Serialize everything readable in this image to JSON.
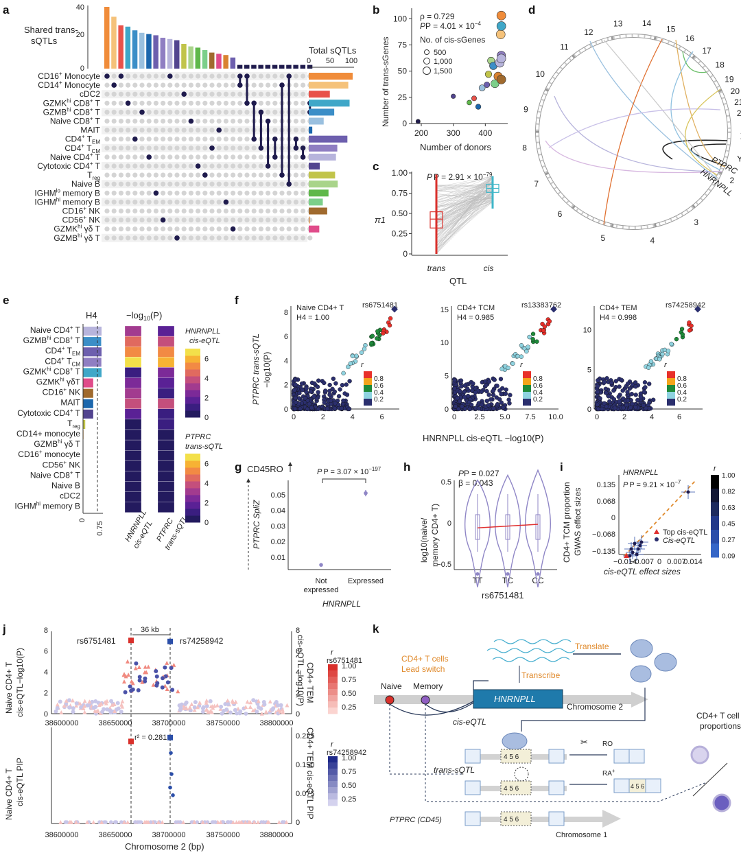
{
  "panels": [
    "a",
    "b",
    "c",
    "d",
    "e",
    "f",
    "g",
    "h",
    "i",
    "j",
    "k"
  ],
  "colors": {
    "navy": "#1f1b4d",
    "orange": "#e08a2c",
    "red": "#d9302b",
    "teal": "#3fb6c8",
    "purple": "#8f86c6",
    "blue_bar": "#2e78c0",
    "hnrnpll_box": "#1f7aab"
  },
  "panel_a": {
    "title_shared": [
      "Shared trans-",
      "sQTLs"
    ],
    "title_total": "Total sQTLs",
    "y_ticks": [
      "0",
      "20",
      "40"
    ],
    "x_ticks": [
      "0",
      "50",
      "100"
    ],
    "cell_types": [
      "CD16+ Monocyte",
      "CD14+ Monocyte",
      "cDC2",
      "GZMKhi CD8+ T",
      "GZMBhi CD8+ T",
      "Naive CD8+ T",
      "MAIT",
      "CD4+ TEM",
      "CD4+ TCM",
      "Naive CD4+ T",
      "Cytotoxic CD4+ T",
      "Treg",
      "Naive B",
      "IGHMlo memory B",
      "IGHMhi memory B",
      "CD16+ NK",
      "CD56+ NK",
      "GZMKhi γδ T",
      "GZMBhi γδ T"
    ],
    "label_parts": [
      [
        "CD16",
        "+",
        " Monocyte",
        ""
      ],
      [
        "CD14",
        "+",
        " Monocyte",
        ""
      ],
      [
        "cDC2",
        "",
        "",
        ""
      ],
      [
        "GZMK",
        "hi",
        " CD8",
        "+ T"
      ],
      [
        "GZMB",
        "hi",
        " CD8",
        "+ T"
      ],
      [
        "Naive CD8",
        "+",
        " T",
        ""
      ],
      [
        "MAIT",
        "",
        "",
        ""
      ],
      [
        "CD4",
        "+",
        " T",
        "EM"
      ],
      [
        "CD4",
        "+",
        " T",
        "CM"
      ],
      [
        "Naive CD4",
        "+",
        " T",
        ""
      ],
      [
        "Cytotoxic CD4",
        "+",
        " T",
        ""
      ],
      [
        "T",
        "reg",
        "",
        ""
      ],
      [
        "Naive B",
        "",
        "",
        ""
      ],
      [
        "IGHM",
        "lo",
        " memory B",
        ""
      ],
      [
        "IGHM",
        "hi",
        " memory B",
        ""
      ],
      [
        "CD16",
        "+",
        " NK",
        ""
      ],
      [
        "CD56",
        "+",
        " NK",
        ""
      ],
      [
        "GZMK",
        "hi",
        " γδ T",
        ""
      ],
      [
        "GZMB",
        "hi",
        " γδ T",
        ""
      ]
    ],
    "total_sqtls": [
      100,
      90,
      48,
      93,
      58,
      34,
      8,
      88,
      65,
      62,
      25,
      60,
      66,
      45,
      32,
      42,
      2,
      24,
      0
    ],
    "total_colors": [
      "#f08c3a",
      "#f5c27a",
      "#e8524a",
      "#3fa7c8",
      "#3b8ec7",
      "#9ac0df",
      "#1c67ad",
      "#6d5fae",
      "#8f7ec2",
      "#b7b4dc",
      "#52448f",
      "#c1c44a",
      "#a9d48a",
      "#5fb84a",
      "#7ccf8a",
      "#a06a2e",
      "#d9822f",
      "#e04c8a",
      "#bbbbbb"
    ],
    "shared_counts": [
      50,
      42,
      35,
      34,
      31,
      29,
      28,
      27,
      25,
      24,
      23,
      20,
      18,
      17,
      15,
      13,
      12,
      11,
      9,
      3,
      3,
      3,
      3,
      3,
      3,
      3,
      3,
      3,
      3,
      3
    ],
    "shared_colors": [
      "#f08c3a",
      "#f5c27a",
      "#e8524a",
      "#3fa7c8",
      "#3b8ec7",
      "#9ac0df",
      "#1c67ad",
      "#6d5fae",
      "#8f7ec2",
      "#b7b4dc",
      "#52448f",
      "#c1c44a",
      "#a9d48a",
      "#5fb84a",
      "#7ccf8a",
      "#a06a2e",
      "#e04c8a",
      "#d9822f",
      "#6d5fae",
      "#1f1b4d",
      "#1f1b4d",
      "#1f1b4d",
      "#1f1b4d",
      "#1f1b4d",
      "#1f1b4d",
      "#1f1b4d",
      "#1f1b4d",
      "#1f1b4d",
      "#1f1b4d",
      "#1f1b4d"
    ],
    "single_row_per_col": [
      0,
      1,
      0,
      3,
      7,
      4,
      9,
      13,
      16,
      0,
      18,
      2,
      5,
      10,
      11,
      8,
      6,
      14,
      17
    ],
    "combos": [
      [
        0,
        1
      ],
      [
        0,
        3
      ],
      [
        3,
        7
      ],
      [
        4,
        8
      ],
      [
        5,
        10
      ],
      [
        7,
        9
      ],
      [
        1,
        11
      ],
      [
        0,
        12
      ],
      [
        7,
        8
      ],
      [
        8,
        9
      ],
      [
        3,
        4
      ],
      [
        2,
        5
      ],
      [
        4,
        13
      ],
      [
        6,
        9
      ],
      [
        7,
        14
      ]
    ]
  },
  "panel_b": {
    "ylabel": "Number of trans-sGenes",
    "xlabel": "Number of donors",
    "rho": "ρ = 0.729",
    "p": "P = 4.01 × 10",
    "p_exp": "−4",
    "legend_title": "No. of cis-sGenes",
    "legend_items": [
      "500",
      "1,000",
      "1,500"
    ],
    "x_ticks": [
      "200",
      "300",
      "400"
    ],
    "y_ticks": [
      "0",
      "25",
      "50",
      "75",
      "100"
    ],
    "points": [
      {
        "x": 190,
        "y": 2,
        "s": 500,
        "c": "#1f1b4d"
      },
      {
        "x": 300,
        "y": 26,
        "s": 550,
        "c": "#52448f"
      },
      {
        "x": 350,
        "y": 20,
        "s": 600,
        "c": "#5fb84a"
      },
      {
        "x": 365,
        "y": 24,
        "s": 650,
        "c": "#e8524a"
      },
      {
        "x": 378,
        "y": 16,
        "s": 700,
        "c": "#1c67ad"
      },
      {
        "x": 390,
        "y": 34,
        "s": 900,
        "c": "#9ac0df"
      },
      {
        "x": 405,
        "y": 37,
        "s": 800,
        "c": "#6d5fae"
      },
      {
        "x": 410,
        "y": 47,
        "s": 1000,
        "c": "#c1c44a"
      },
      {
        "x": 418,
        "y": 60,
        "s": 1100,
        "c": "#a9d48a"
      },
      {
        "x": 425,
        "y": 55,
        "s": 1200,
        "c": "#3b8ec7"
      },
      {
        "x": 430,
        "y": 38,
        "s": 1300,
        "c": "#7ccf8a"
      },
      {
        "x": 440,
        "y": 45,
        "s": 1400,
        "c": "#d9822f"
      },
      {
        "x": 445,
        "y": 58,
        "s": 1500,
        "c": "#b7b4dc"
      },
      {
        "x": 450,
        "y": 65,
        "s": 1400,
        "c": "#8f7ec2"
      },
      {
        "x": 450,
        "y": 42,
        "s": 1500,
        "c": "#a06a2e"
      },
      {
        "x": 450,
        "y": 62,
        "s": 1500,
        "c": "#b7b4dc"
      },
      {
        "x": 448,
        "y": 85,
        "s": 1500,
        "c": "#f5c27a"
      },
      {
        "x": 450,
        "y": 93,
        "s": 1500,
        "c": "#3fa7c8"
      },
      {
        "x": 450,
        "y": 103,
        "s": 1500,
        "c": "#f08c3a"
      }
    ]
  },
  "panel_c": {
    "p": "P = 2.91 × 10",
    "p_exp": "−79",
    "ylabel": "π1",
    "xlabel": "QTL",
    "x_ticks": [
      "trans",
      "cis"
    ],
    "y_ticks": [
      "0",
      "0.25",
      "0.50",
      "0.75",
      "1.00"
    ],
    "trans_box": {
      "min": 0.0,
      "q1": 0.32,
      "median": 0.43,
      "q3": 0.52,
      "max": 0.98
    },
    "cis_box": {
      "min": 0.56,
      "q1": 0.76,
      "median": 0.81,
      "q3": 0.86,
      "max": 0.96
    }
  },
  "panel_d": {
    "chromosomes": [
      "1",
      "2",
      "3",
      "4",
      "5",
      "6",
      "7",
      "8",
      "9",
      "10",
      "11",
      "12",
      "13",
      "14",
      "15",
      "16",
      "17",
      "18",
      "19",
      "20",
      "21",
      "22",
      "X",
      "Y"
    ],
    "labels": [
      "PTPRC",
      "HNRNPLL"
    ]
  },
  "panel_e": {
    "h4_header": "H4",
    "log_header": "−log",
    "log_header_sub": "10",
    "log_header_tail": "(P)",
    "rows": [
      "Naive CD4+ T",
      "GZMBhi CD8+ T",
      "CD4+ TEM",
      "CD4+ TCM",
      "GZMKhi CD8+ T",
      "GZMKhi γδT",
      "CD16+ NK",
      "MAIT",
      "Cytotoxic CD4+ T",
      "Treg",
      "CD14+ monocyte",
      "GZMBhi γδ T",
      "CD16+ monocyte",
      "CD56+ NK",
      "Naive CD8+ T",
      "Naive B",
      "cDC2",
      "IGHMhi memory B"
    ],
    "row_parts": [
      [
        "Naive CD4",
        "+",
        " T",
        ""
      ],
      [
        "GZMB",
        "hi",
        " CD8",
        "+ T"
      ],
      [
        "CD4",
        "+",
        " T",
        "EM"
      ],
      [
        "CD4",
        "+",
        " T",
        "CM"
      ],
      [
        "GZMK",
        "hi",
        " CD8",
        "+ T"
      ],
      [
        "GZMK",
        "hi",
        " γδT",
        ""
      ],
      [
        "CD16",
        "+",
        " NK",
        ""
      ],
      [
        "MAIT",
        "",
        "",
        ""
      ],
      [
        "Cytotoxic CD4",
        "+",
        " T",
        ""
      ],
      [
        "T",
        "reg",
        "",
        ""
      ],
      [
        "CD14+ monocyte",
        "",
        "",
        ""
      ],
      [
        "GZMB",
        "hi",
        " γδ T",
        ""
      ],
      [
        "CD16",
        "+",
        " monocyte",
        ""
      ],
      [
        "CD56",
        "+",
        " NK",
        ""
      ],
      [
        "Naive CD8",
        "+",
        " T",
        ""
      ],
      [
        "Naive B",
        "",
        "",
        ""
      ],
      [
        "cDC2",
        "",
        "",
        ""
      ],
      [
        "IGHM",
        "hi",
        " memory B",
        ""
      ]
    ],
    "h4_values": [
      1.0,
      0.98,
      1.0,
      0.99,
      1.0,
      0.55,
      0.55,
      0.55,
      0.55,
      0.12,
      0.03,
      0.02,
      0.01,
      0.01,
      0.01,
      0.01,
      0.01,
      0.01
    ],
    "h4_colors": [
      "#b7b4dc",
      "#3b8ec7",
      "#6d5fae",
      "#8f7ec2",
      "#3fa7c8",
      "#e04c8a",
      "#a06a2e",
      "#1c67ad",
      "#52448f",
      "#c1c44a",
      "#f5c27a",
      "#bbbbbb",
      "#f08c3a",
      "#d9822f",
      "#9ac0df",
      "#a9d48a",
      "#e8524a",
      "#7ccf8a"
    ],
    "h4_ticks": [
      "0",
      "0.75"
    ],
    "cis_heat": [
      3.2,
      5.0,
      5.6,
      6.8,
      1.0,
      2.0,
      3.2,
      4.2,
      1.2,
      0.3,
      0.2,
      0.2,
      0.1,
      0.1,
      0.1,
      0.1,
      0.1,
      0.1
    ],
    "trans_heat": [
      1.2,
      4.2,
      5.6,
      6.6,
      2.0,
      1.2,
      0.8,
      4.2,
      0.6,
      0.4,
      0.3,
      0.2,
      0.2,
      0.2,
      0.1,
      0.1,
      0.1,
      0.1
    ],
    "col_labels": [
      [
        "HNRNPLL",
        "cis-eQTL"
      ],
      [
        "PTPRC",
        "trans-sQTL"
      ]
    ],
    "cb1_title": [
      "HNRNPLL",
      "cis-eQTL"
    ],
    "cb2_title": [
      "PTPRC",
      "trans-sQTL"
    ],
    "cb_ticks": [
      "0",
      "2",
      "4",
      "6"
    ]
  },
  "panel_f": {
    "ylabel": [
      "PTPRC trans-sQTL",
      "−log10(P)"
    ],
    "xlabel": "HNRNPLL cis-eQTL −log10(P)",
    "plots": [
      {
        "title": "Naive CD4+ T",
        "h4": "H4 = 1.00",
        "snp": "rs6751481",
        "xmax": 7,
        "ymax": 8.5,
        "x_ticks": [
          "0",
          "2",
          "4",
          "6"
        ],
        "y_ticks": [
          "0",
          "2",
          "4",
          "6",
          "8"
        ]
      },
      {
        "title": "CD4+ TCM",
        "h4": "H4 = 0.985",
        "snp": "rs13383762",
        "xmax": 10,
        "ymax": 15.5,
        "x_ticks": [
          "0",
          "2.5",
          "5.0",
          "7.5",
          "10.0"
        ],
        "y_ticks": [
          "0",
          "5",
          "10",
          "15"
        ]
      },
      {
        "title": "CD4+ TEM",
        "h4": "H4 = 0.998",
        "snp": "rs74258942",
        "xmax": 7.5,
        "ymax": 13,
        "x_ticks": [
          "0",
          "2",
          "4",
          "6"
        ],
        "y_ticks": [
          "0",
          "5",
          "10"
        ]
      }
    ],
    "r2_title": "r",
    "r2_ticks": [
      "0.8",
      "0.6",
      "0.4",
      "0.2"
    ],
    "r2_colors": [
      "#e8302a",
      "#f4a51c",
      "#1f8a3a",
      "#8fd3e0",
      "#2b2f6e"
    ]
  },
  "panel_g": {
    "marker": "CD45RO",
    "ylabel": "PTPRC SpliZ",
    "p": "P = 3.07 × 10",
    "p_exp": "−197",
    "xlabel": "HNRNPLL",
    "x_ticks": [
      [
        "Not",
        "expressed"
      ],
      [
        "Expressed"
      ]
    ],
    "y_ticks": [
      "0.01",
      "0.02",
      "0.03",
      "0.04",
      "0.05"
    ],
    "points": [
      {
        "x": 0,
        "y": 0.005,
        "lo": 0.004,
        "hi": 0.006
      },
      {
        "x": 1,
        "y": 0.051,
        "lo": 0.049,
        "hi": 0.053
      }
    ]
  },
  "panel_h": {
    "p": "P = 0.027",
    "beta": "β = 0.043",
    "ylabel": [
      "log10(naive/",
      "memory CD4+ T)"
    ],
    "xlabel": "rs6751481",
    "x_ticks": [
      "TT",
      "TC",
      "CC"
    ],
    "y_ticks": [
      "0.5",
      "0",
      "−0.5"
    ],
    "medians": [
      -0.06,
      -0.04,
      -0.05
    ]
  },
  "panel_i": {
    "gene": "HNRNPLL",
    "p": "P = 9.21 × 10",
    "p_exp": "−7",
    "ylabel": [
      "CD4+ TCM proportion",
      "GWAS effect sizes"
    ],
    "xlabel": "cis-eQTL effect sizes",
    "x_ticks": [
      "−0.014",
      "−0.007",
      "0",
      "0.007",
      "0.014"
    ],
    "y_ticks": [
      "0.135",
      "0.068",
      "0",
      "−0.068",
      "−0.135"
    ],
    "legend": [
      "Top cis-eQTL",
      "Cis-eQTL"
    ],
    "r2_ticks": [
      "1.00",
      "0.82",
      "0.63",
      "0.45",
      "0.27",
      "0.09"
    ]
  },
  "panel_j": {
    "top_ylabel_left": [
      "Naive CD4+ T",
      "cis-eQTL−log10(P)"
    ],
    "top_ylabel_right": [
      "CD4+ TEM",
      "cis-eQTL −log10(P)"
    ],
    "bot_ylabel_left": [
      "Naive CD4+ T",
      "cis-eQTL PIP"
    ],
    "bot_ylabel_right": [
      "CD4+ TEM cis-eQTL PIP"
    ],
    "xlabel": "Chromosome 2 (bp)",
    "x_ticks": [
      "38600000",
      "38650000",
      "38700000",
      "38750000",
      "38800000"
    ],
    "top_y_ticks": [
      "0",
      "2",
      "4",
      "6",
      "8"
    ],
    "bot_y_ticks_right": [
      "0",
      "0.075",
      "0.150",
      "0.225"
    ],
    "snp1": "rs6751481",
    "snp2": "rs74258942",
    "distance": "36 kb",
    "r2_label": "r² = 0.281",
    "legend1_title": "rs6751481",
    "legend2_title": "rs74258942",
    "legend_ticks": [
      "1.00",
      "0.75",
      "0.50",
      "0.25"
    ]
  },
  "panel_k": {
    "lead_switch": [
      "CD4+ T cells",
      "Lead switch"
    ],
    "naive": "Naive",
    "memory": "Memory",
    "gene": "HNRNPLL",
    "chr2": "Chromosome 2",
    "chr1": "Chromosome 1",
    "cis": "cis-eQTL",
    "trans": "trans-sQTL",
    "transcribe": "Transcribe",
    "translate": "Translate",
    "ptprc": "PTPRC (CD45)",
    "exons": "4 5 6",
    "ro": "RO",
    "ra": "RA",
    "ra_sup": "+",
    "proportion": [
      "CD4+ T cell",
      "proportions"
    ]
  }
}
